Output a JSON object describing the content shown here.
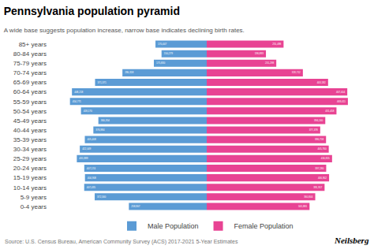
{
  "chart_data": {
    "type": "bar",
    "orientation": "horizontal",
    "title": "Pennsylvania population pyramid",
    "subtitle": "A wide base suggests population increase, narrow base indicates declining birth rates.",
    "annotations": [
      "Source: U.S. Census Bureau, American Community Survey (ACS) 2017-2021 5-Year Estimates",
      "Neilsberg"
    ],
    "categories": [
      "0-4 years",
      "5-9 years",
      "10-14 years",
      "15-19 years",
      "20-24 years",
      "25-29 years",
      "30-34 years",
      "35-39 years",
      "40-44 years",
      "45-49 years",
      "50-54 years",
      "55-59 years",
      "60-64 years",
      "65-69 years",
      "70-74 years",
      "75-79 years",
      "80-84 years",
      "85+ years"
    ],
    "series": [
      {
        "name": "Male Population",
        "color": "#5B9BD5",
        "values": [
          258907,
          372560,
          407435,
          404908,
          407174,
          431989,
          422049,
          405408,
          376984,
          360354,
          418170,
          454771,
          448218,
          371371,
          280318,
          175830,
          150279,
          170447
        ],
        "value_labels": [
          "258,907",
          "372,560",
          "407,435",
          "404,908",
          "407,174",
          "431,989",
          "422,049",
          "405,408",
          "376,984",
          "360,354",
          "418,170",
          "454,771",
          "448,218",
          "371,371",
          "280,318",
          "175,830",
          "150,279",
          "170,447"
        ]
      },
      {
        "name": "Female Population",
        "color": "#E84393",
        "values": [
          341881,
          360844,
          391917,
          406902,
          397280,
          416815,
          405760,
          396758,
          377378,
          394240,
          431458,
          469411,
          467404,
          403592,
          319712,
          231298,
          196893,
          255498
        ],
        "value_labels": [
          "341,881",
          "360,844",
          "391,917",
          "406,902",
          "397,280",
          "416,815",
          "405,760",
          "396,758",
          "377,378",
          "394,240",
          "431,458",
          "469,411",
          "467,404",
          "403,592",
          "319,712",
          "231,298",
          "196,893",
          "255,498"
        ]
      }
    ],
    "xlim": [
      -530000,
      530000
    ],
    "xticks": [],
    "tick_labels": "y",
    "grid": false,
    "legend": "bottom",
    "data_labels": true
  }
}
